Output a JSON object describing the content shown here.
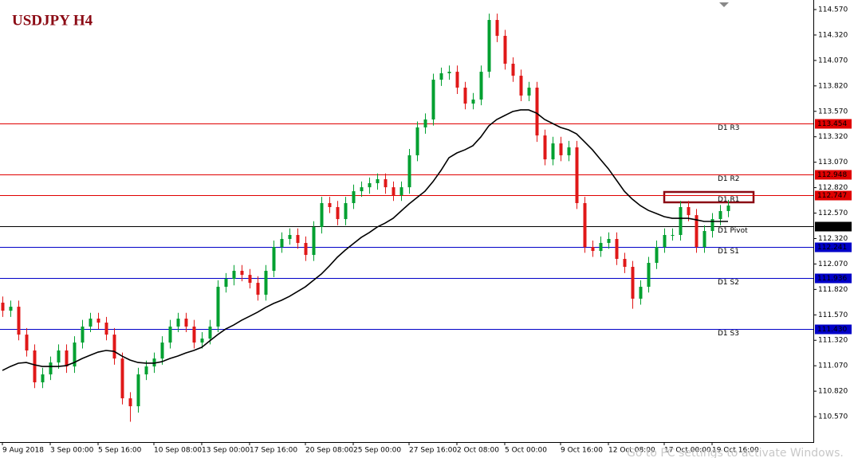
{
  "chart_data": {
    "type": "candlestick",
    "title": "USDJPY H4",
    "categories": [
      "9 Aug 2018",
      null,
      null,
      null,
      null,
      null,
      "3 Sep 00:00",
      null,
      null,
      null,
      null,
      null,
      "5 Sep 16:00",
      null,
      null,
      null,
      null,
      null,
      null,
      "10 Sep 08:00",
      null,
      null,
      null,
      null,
      null,
      "13 Sep 00:00",
      null,
      null,
      null,
      null,
      null,
      "17 Sep 16:00",
      null,
      null,
      null,
      null,
      null,
      null,
      "20 Sep 08:00",
      null,
      null,
      null,
      null,
      null,
      "25 Sep 00:00",
      null,
      null,
      null,
      null,
      null,
      null,
      "27 Sep 16:00",
      null,
      null,
      null,
      null,
      null,
      "2 Oct 08:00",
      null,
      null,
      null,
      null,
      null,
      "5 Oct 00:00",
      null,
      null,
      null,
      null,
      null,
      null,
      "9 Oct 16:00",
      null,
      null,
      null,
      null,
      null,
      "12 Oct 08:00",
      null,
      null,
      null,
      null,
      null,
      null,
      "17 Oct 00:00",
      null,
      null,
      null,
      null,
      null,
      "19 Oct 16:00",
      null,
      null
    ],
    "open": [
      111.69,
      111.611,
      111.65,
      111.376,
      111.22,
      110.907,
      110.985,
      111.102,
      111.22,
      111.063,
      111.298,
      111.455,
      111.533,
      111.494,
      111.376,
      111.141,
      110.75,
      110.672,
      110.985,
      111.063,
      111.141,
      111.298,
      111.455,
      111.533,
      111.455,
      111.298,
      111.337,
      111.455,
      111.846,
      111.924,
      112.003,
      111.963,
      111.885,
      111.768,
      112.003,
      112.237,
      112.316,
      112.355,
      112.277,
      112.159,
      112.433,
      112.668,
      112.629,
      112.511,
      112.668,
      112.785,
      112.824,
      112.864,
      112.903,
      112.824,
      112.746,
      112.824,
      113.138,
      113.412,
      113.49,
      113.881,
      113.944,
      113.959,
      113.803,
      113.646,
      113.686,
      113.959,
      114.468,
      114.312,
      114.038,
      113.92,
      113.725,
      113.803,
      113.333,
      113.098,
      113.255,
      113.138,
      113.216,
      112.668,
      112.237,
      112.198,
      112.277,
      112.316,
      112.12,
      112.042,
      111.729,
      111.846,
      112.081,
      112.237,
      112.355,
      112.355,
      112.629,
      112.55,
      112.237,
      112.394,
      112.511,
      112.59
    ],
    "high": [
      111.75,
      111.71,
      111.71,
      111.44,
      111.28,
      111.05,
      111.16,
      111.28,
      111.28,
      111.36,
      111.52,
      111.59,
      111.59,
      111.55,
      111.44,
      111.2,
      110.81,
      111.05,
      111.12,
      111.2,
      111.36,
      111.52,
      111.59,
      111.59,
      111.52,
      111.4,
      111.52,
      111.91,
      111.98,
      112.06,
      112.06,
      112.02,
      111.95,
      112.06,
      112.3,
      112.38,
      112.42,
      112.42,
      112.34,
      112.49,
      112.73,
      112.73,
      112.69,
      112.73,
      112.85,
      112.88,
      112.92,
      112.96,
      112.96,
      112.88,
      112.88,
      113.2,
      113.47,
      113.55,
      113.94,
      114.0,
      114.02,
      114.02,
      113.86,
      113.75,
      114.02,
      114.53,
      114.53,
      114.37,
      114.1,
      113.98,
      113.86,
      113.86,
      113.39,
      113.32,
      113.32,
      113.28,
      113.28,
      112.73,
      112.3,
      112.34,
      112.38,
      112.38,
      112.18,
      112.1,
      111.91,
      112.14,
      112.3,
      112.42,
      112.42,
      112.69,
      112.69,
      112.61,
      112.45,
      112.57,
      112.65,
      112.7
    ],
    "low": [
      111.55,
      111.55,
      111.32,
      111.16,
      110.85,
      110.85,
      110.93,
      111.04,
      111.0,
      111.0,
      111.24,
      111.4,
      111.43,
      111.32,
      111.08,
      110.69,
      110.52,
      110.61,
      110.93,
      111.0,
      111.08,
      111.24,
      111.4,
      111.4,
      111.24,
      111.24,
      111.28,
      111.4,
      111.79,
      111.86,
      111.9,
      111.83,
      111.71,
      111.71,
      111.94,
      112.18,
      112.26,
      112.22,
      112.1,
      112.1,
      112.37,
      112.57,
      112.45,
      112.45,
      112.61,
      112.73,
      112.76,
      112.8,
      112.76,
      112.69,
      112.69,
      112.76,
      113.08,
      113.35,
      113.43,
      113.82,
      113.88,
      113.74,
      113.59,
      113.59,
      113.63,
      113.9,
      114.25,
      113.98,
      113.86,
      113.67,
      113.67,
      113.27,
      113.04,
      113.04,
      113.08,
      113.08,
      112.61,
      112.18,
      112.14,
      112.14,
      112.22,
      112.06,
      111.98,
      111.63,
      111.67,
      111.79,
      112.02,
      112.18,
      112.3,
      112.3,
      112.49,
      112.18,
      112.18,
      112.33,
      112.45,
      112.53
    ],
    "close": [
      111.611,
      111.65,
      111.376,
      111.22,
      110.907,
      110.985,
      111.102,
      111.22,
      111.063,
      111.298,
      111.455,
      111.533,
      111.494,
      111.376,
      111.141,
      110.75,
      110.672,
      110.985,
      111.063,
      111.141,
      111.298,
      111.455,
      111.533,
      111.455,
      111.298,
      111.337,
      111.455,
      111.846,
      111.924,
      112.003,
      111.963,
      111.885,
      111.768,
      112.003,
      112.237,
      112.316,
      112.355,
      112.277,
      112.159,
      112.433,
      112.668,
      112.629,
      112.511,
      112.668,
      112.785,
      112.824,
      112.864,
      112.903,
      112.824,
      112.746,
      112.824,
      113.138,
      113.412,
      113.49,
      113.881,
      113.944,
      113.959,
      113.803,
      113.646,
      113.686,
      113.959,
      114.468,
      114.312,
      114.038,
      113.92,
      113.725,
      113.803,
      113.333,
      113.098,
      113.255,
      113.138,
      113.216,
      112.668,
      112.237,
      112.198,
      112.277,
      112.316,
      112.12,
      112.042,
      111.729,
      111.846,
      112.081,
      112.237,
      112.355,
      112.355,
      112.629,
      112.55,
      112.237,
      112.394,
      112.511,
      112.59,
      112.644
    ],
    "up_color": "#00a030",
    "down_color": "#e01818",
    "ma": {
      "color": "#000000",
      "values": [
        111.024,
        111.063,
        111.095,
        111.102,
        111.079,
        111.063,
        111.063,
        111.063,
        111.071,
        111.102,
        111.141,
        111.173,
        111.204,
        111.22,
        111.212,
        111.165,
        111.126,
        111.102,
        111.095,
        111.095,
        111.11,
        111.141,
        111.165,
        111.196,
        111.22,
        111.251,
        111.314,
        111.376,
        111.431,
        111.47,
        111.517,
        111.556,
        111.596,
        111.642,
        111.682,
        111.713,
        111.752,
        111.799,
        111.846,
        111.909,
        111.971,
        112.05,
        112.136,
        112.206,
        112.269,
        112.331,
        112.378,
        112.433,
        112.472,
        112.519,
        112.59,
        112.66,
        112.723,
        112.785,
        112.879,
        112.989,
        113.114,
        113.161,
        113.192,
        113.232,
        113.318,
        113.427,
        113.49,
        113.529,
        113.568,
        113.584,
        113.584,
        113.552,
        113.49,
        113.451,
        113.412,
        113.388,
        113.349,
        113.271,
        113.192,
        113.098,
        113.005,
        112.895,
        112.785,
        112.707,
        112.644,
        112.597,
        112.566,
        112.535,
        112.519,
        112.519,
        112.519,
        112.504,
        112.488,
        112.488,
        112.488,
        112.488
      ]
    },
    "levels": [
      {
        "name": "D1 R3",
        "value": 113.454,
        "color": "#e00000"
      },
      {
        "name": "D1 R2",
        "value": 112.948,
        "color": "#e00000"
      },
      {
        "name": "D1 R1",
        "value": 112.747,
        "color": "#e00000"
      },
      {
        "name": "D1 Pivot",
        "value": 112.442,
        "color": "#000000"
      },
      {
        "name": "D1 S1",
        "value": 112.241,
        "color": "#0000c8"
      },
      {
        "name": "D1 S2",
        "value": 111.936,
        "color": "#0000c8"
      },
      {
        "name": "D1 S3",
        "value": 111.43,
        "label": "111.430",
        "color": "#0000c8"
      }
    ],
    "ylim": [
      110.32,
      114.664
    ],
    "yticks": [
      {
        "value": 114.57,
        "label": "114.570"
      },
      {
        "value": 114.32,
        "label": "114.320"
      },
      {
        "value": 114.07,
        "label": "114.070"
      },
      {
        "value": 113.82,
        "label": "113.820"
      },
      {
        "value": 113.57,
        "label": "113.570"
      },
      {
        "value": 113.32,
        "label": "113.320"
      },
      {
        "value": 113.07,
        "label": "113.070"
      },
      {
        "value": 112.82,
        "label": "112.820"
      },
      {
        "value": 112.57,
        "label": "112.570"
      },
      {
        "value": 112.32,
        "label": "112.320"
      },
      {
        "value": 112.07,
        "label": "112.070"
      },
      {
        "value": 111.82,
        "label": "111.820"
      },
      {
        "value": 111.57,
        "label": "111.570"
      },
      {
        "value": 111.32,
        "label": "111.320"
      },
      {
        "value": 111.07,
        "label": "111.070"
      },
      {
        "value": 110.82,
        "label": "110.820"
      },
      {
        "value": 110.57,
        "label": "110.570"
      }
    ],
    "watermark": "Go to PC settings to activate Windows."
  }
}
